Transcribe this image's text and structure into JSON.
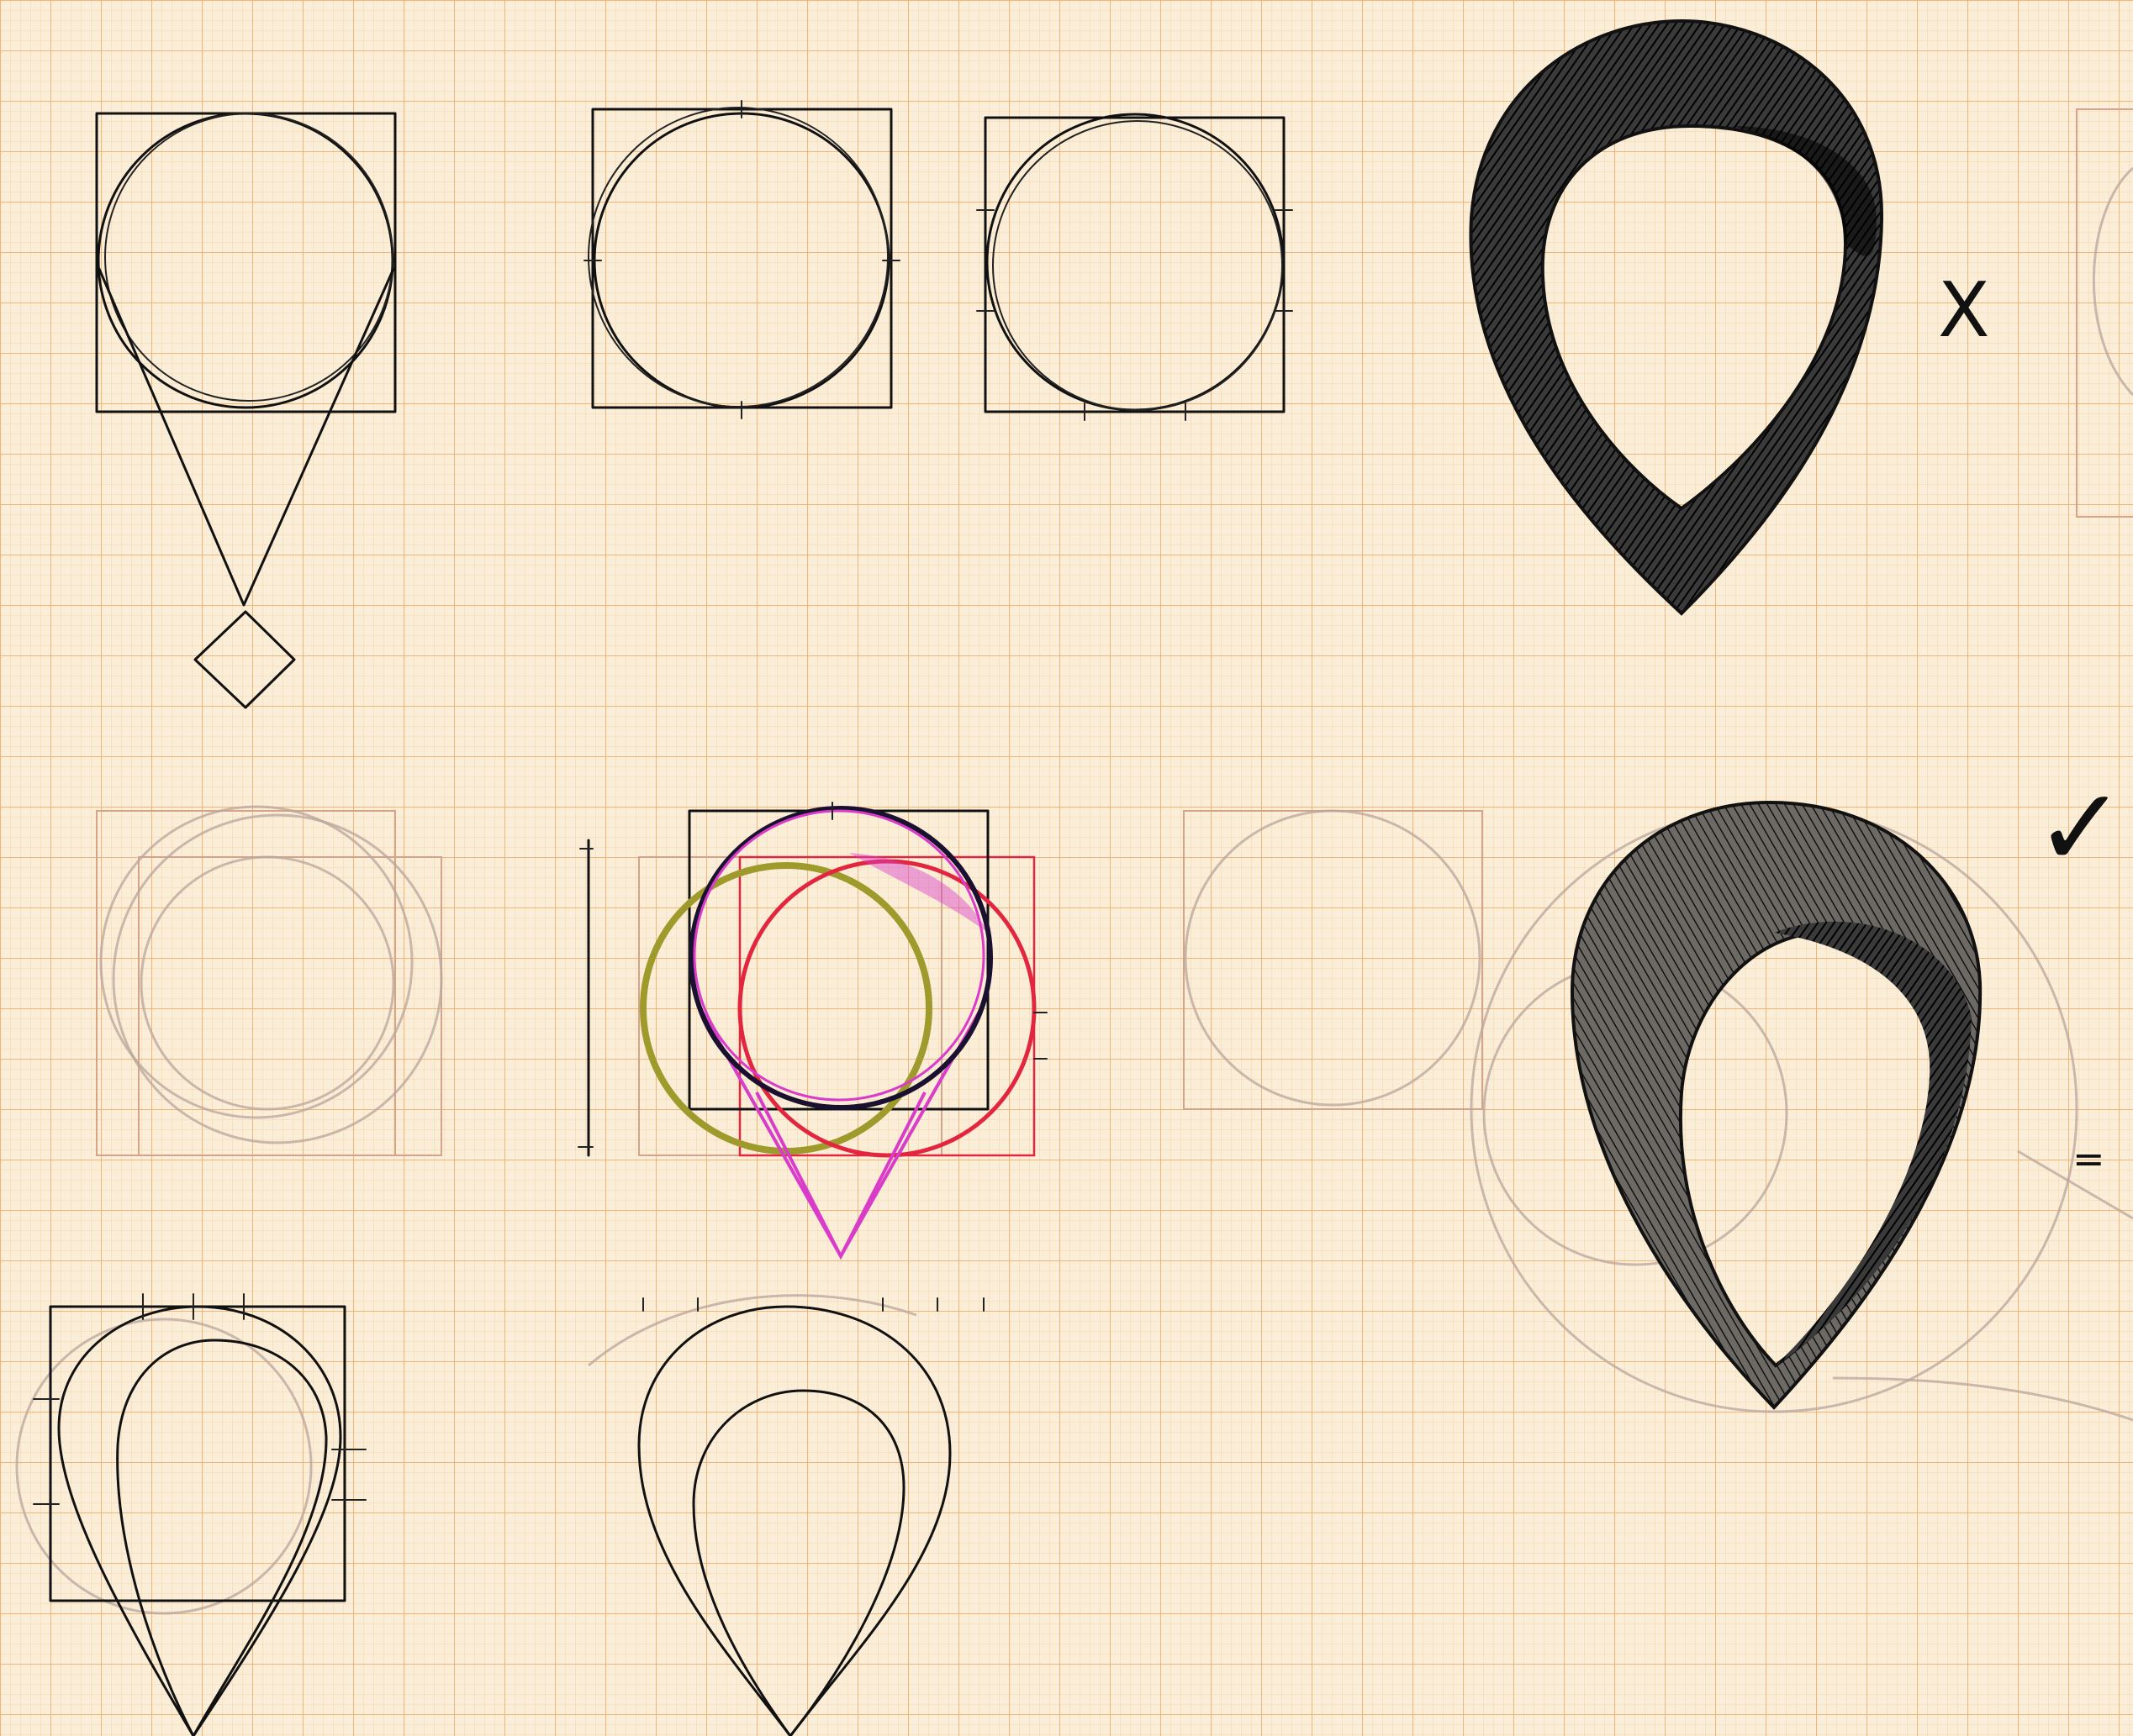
{
  "sheet": {
    "paper_color": "#fbeed9",
    "grid_minor_color": "#f4cf9c",
    "grid_major_color": "#f0b56c",
    "ink_color": "#111111"
  },
  "annotations": {
    "reject_mark": "X",
    "approve_mark": "✓",
    "equals_mark": "="
  },
  "marker_colors": {
    "olive": "#9f9a2c",
    "red": "#e3263f",
    "magenta": "#d83cc8",
    "pencil": "#b9a49b"
  }
}
